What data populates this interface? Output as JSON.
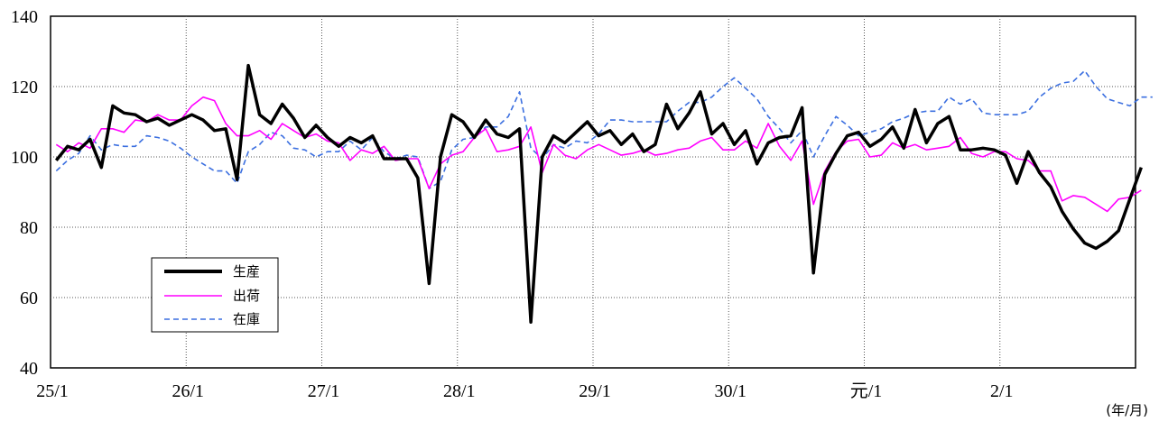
{
  "chart_data": {
    "type": "line",
    "x_tick_labels": [
      "25/1",
      "26/1",
      "27/1",
      "28/1",
      "29/1",
      "30/1",
      "元/1",
      "2/1"
    ],
    "x_unit_label": "(年/月)",
    "y_ticks": [
      40,
      60,
      80,
      100,
      120,
      140
    ],
    "ylim": [
      40,
      140
    ],
    "grid": true,
    "legend_position": "bottom-left",
    "series": [
      {
        "name": "生産",
        "color": "#000000",
        "style": "solid-thick",
        "values": [
          99,
          103,
          102,
          105,
          97,
          114.5,
          112.5,
          112,
          110,
          111,
          109,
          110.5,
          112,
          110.5,
          107.5,
          108,
          93.5,
          126,
          112,
          109.5,
          115,
          111,
          105.5,
          109,
          105.5,
          103,
          105.5,
          104,
          106,
          99.5,
          99.5,
          99.5,
          94,
          64,
          100,
          112,
          110,
          105.5,
          110.5,
          106.5,
          105.5,
          108,
          53,
          100,
          106,
          104,
          107,
          110,
          106,
          107.5,
          103.5,
          106.5,
          101.5,
          103.5,
          115,
          108,
          112.5,
          118.5,
          106.5,
          109.5,
          103.5,
          107.5,
          98,
          104,
          105.5,
          106,
          114,
          67,
          95,
          101,
          106,
          107,
          103,
          105,
          108.5,
          102.5,
          113.5,
          104,
          109.5,
          111.5,
          102,
          102,
          102.5,
          102,
          100.5,
          92.5,
          101.5,
          95.5,
          91.5,
          84.5,
          79.5,
          75.5,
          74,
          76,
          79,
          88,
          97
        ]
      },
      {
        "name": "出荷",
        "color": "#ff00ff",
        "style": "solid",
        "values": [
          103.5,
          101.5,
          104,
          102.5,
          108,
          108,
          107,
          110.5,
          110,
          112,
          110.5,
          110.5,
          114.5,
          117,
          116,
          109.5,
          106,
          106,
          107.5,
          105,
          109.5,
          107.5,
          105.5,
          106.5,
          104.5,
          104,
          99,
          102,
          101,
          103,
          99,
          99.5,
          99.5,
          91,
          98,
          100.5,
          101.5,
          105.5,
          108,
          101.5,
          102,
          103,
          108.5,
          95.5,
          103.5,
          100.5,
          99.5,
          102,
          103.5,
          102,
          100.5,
          101,
          102,
          100.5,
          101,
          102,
          102.5,
          104.5,
          105.5,
          102,
          102,
          104.5,
          102.5,
          109.5,
          103,
          99,
          104.5,
          86.5,
          96,
          101.5,
          104.5,
          105,
          100,
          100.5,
          104,
          102.5,
          103.5,
          102,
          102.5,
          103,
          105.5,
          101,
          100,
          101.5,
          101.5,
          99.5,
          99,
          96,
          96,
          87.5,
          89,
          88.5,
          86.5,
          84.5,
          88,
          88.5,
          90.5
        ]
      },
      {
        "name": "在庫",
        "color": "#3b6fe0",
        "style": "dashed",
        "values": [
          96,
          99,
          101,
          106,
          102,
          103.5,
          103,
          103,
          106,
          105.5,
          104.5,
          102.5,
          100,
          98,
          96,
          96,
          92.5,
          101.5,
          103.5,
          107,
          106,
          102.5,
          102,
          100,
          101.5,
          101.5,
          104.5,
          102,
          105.5,
          101.5,
          99.5,
          100.5,
          100,
          91,
          93,
          102,
          105,
          105.5,
          108.5,
          108.5,
          111.5,
          118.5,
          102.5,
          99.5,
          103.5,
          102.5,
          104.5,
          104,
          106.5,
          110.5,
          110.5,
          110,
          110,
          110,
          110,
          113,
          115.5,
          115.5,
          117,
          120,
          122.5,
          119.5,
          116.5,
          111.5,
          108,
          104,
          107.5,
          100,
          106,
          111.5,
          109,
          106,
          107,
          108,
          110,
          111,
          112.5,
          113,
          113,
          117,
          115,
          116.5,
          112.5,
          112,
          112,
          112,
          113,
          117,
          119.5,
          121,
          121.5,
          124.5,
          120,
          116.5,
          115.5,
          114.5,
          117,
          117
        ]
      }
    ]
  }
}
